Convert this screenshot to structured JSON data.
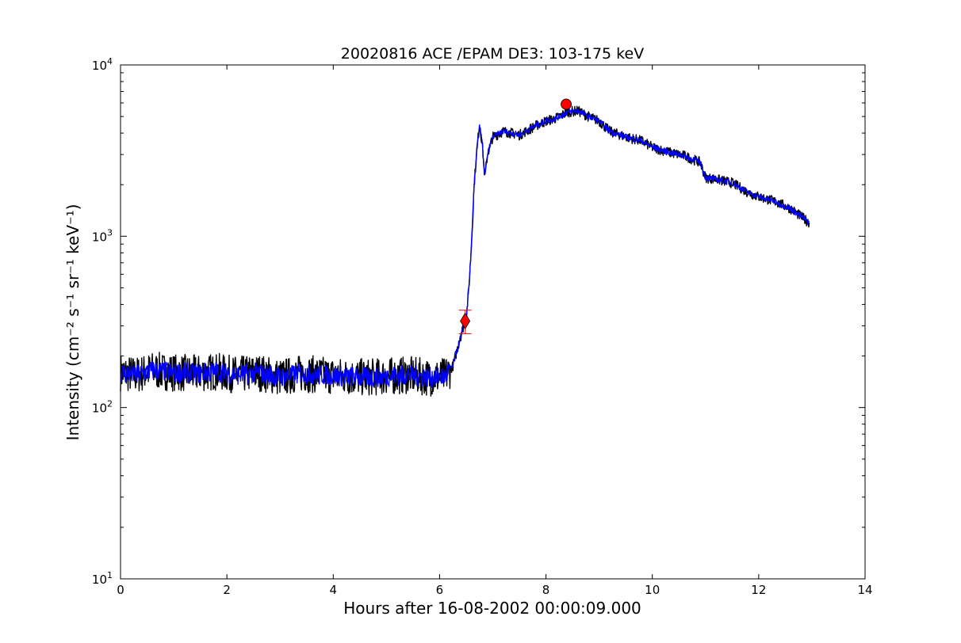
{
  "chart_data": {
    "type": "line",
    "title": "20020816 ACE /EPAM DE3: 103-175 keV",
    "xlabel": "Hours after 16-08-2002 00:00:09.000",
    "ylabel": "Intensity (cm⁻² s⁻¹ sr⁻¹ keV⁻¹)",
    "xlim": [
      0,
      14
    ],
    "ylim": [
      10,
      10000
    ],
    "yscale": "log",
    "grid": false,
    "x_ticks": [
      "0",
      "2",
      "4",
      "6",
      "8",
      "10",
      "12",
      "14"
    ],
    "y_ticks": [
      {
        "value": 10,
        "base": "10",
        "exp": "1"
      },
      {
        "value": 100,
        "base": "10",
        "exp": "2"
      },
      {
        "value": 1000,
        "base": "10",
        "exp": "3"
      },
      {
        "value": 10000,
        "base": "10",
        "exp": "4"
      }
    ],
    "series": [
      {
        "role": "raw",
        "color": "#000000",
        "x": [
          0.0,
          0.3,
          0.6,
          1.0,
          1.4,
          1.8,
          2.2,
          2.6,
          3.0,
          3.4,
          3.8,
          4.2,
          4.6,
          5.0,
          5.4,
          5.8,
          6.1,
          6.25,
          6.35,
          6.45,
          6.5,
          6.55,
          6.6,
          6.65,
          6.7,
          6.75,
          6.8,
          6.85,
          6.9,
          7.0,
          7.2,
          7.5,
          7.8,
          8.0,
          8.2,
          8.4,
          8.6,
          8.8,
          9.0,
          9.2,
          9.5,
          9.8,
          10.0,
          10.3,
          10.6,
          10.9,
          11.0,
          11.2,
          11.5,
          11.8,
          12.0,
          12.3,
          12.6,
          12.8,
          12.95
        ],
        "y": [
          160,
          155,
          165,
          160,
          158,
          162,
          155,
          160,
          150,
          158,
          155,
          152,
          150,
          152,
          155,
          150,
          152,
          175,
          230,
          300,
          330,
          500,
          900,
          2000,
          3200,
          4500,
          3500,
          2200,
          3000,
          3800,
          4100,
          3900,
          4400,
          4700,
          4900,
          5300,
          5400,
          5000,
          4700,
          4100,
          3800,
          3600,
          3300,
          3100,
          2950,
          2700,
          2200,
          2150,
          2050,
          1800,
          1700,
          1600,
          1450,
          1300,
          1200
        ]
      },
      {
        "role": "smoothed",
        "color": "#0000ff",
        "x": [
          0.0,
          0.3,
          0.6,
          1.0,
          1.4,
          1.8,
          2.2,
          2.6,
          3.0,
          3.4,
          3.8,
          4.2,
          4.6,
          5.0,
          5.4,
          5.8,
          6.1,
          6.25,
          6.35,
          6.45,
          6.5,
          6.55,
          6.6,
          6.65,
          6.7,
          6.75,
          6.8,
          6.85,
          6.9,
          7.0,
          7.2,
          7.5,
          7.8,
          8.0,
          8.2,
          8.4,
          8.6,
          8.8,
          9.0,
          9.2,
          9.5,
          9.8,
          10.0,
          10.3,
          10.6,
          10.9,
          11.0,
          11.2,
          11.5,
          11.8,
          12.0,
          12.3,
          12.6,
          12.8,
          12.95
        ],
        "y": [
          160,
          155,
          165,
          160,
          158,
          162,
          155,
          160,
          150,
          158,
          155,
          152,
          150,
          152,
          155,
          150,
          152,
          175,
          230,
          300,
          330,
          500,
          900,
          2000,
          3200,
          4500,
          3500,
          2200,
          3000,
          3800,
          4100,
          3900,
          4400,
          4700,
          4900,
          5300,
          5400,
          5000,
          4700,
          4100,
          3800,
          3600,
          3300,
          3100,
          2950,
          2700,
          2200,
          2150,
          2050,
          1800,
          1700,
          1600,
          1450,
          1300,
          1200
        ]
      }
    ],
    "markers": [
      {
        "shape": "diamond",
        "x": 6.48,
        "y": 320,
        "color": "#ff0000"
      },
      {
        "shape": "circle",
        "x": 8.38,
        "y": 5900,
        "color": "#ff0000"
      }
    ],
    "error_bar": {
      "x": 6.48,
      "y_low": 270,
      "y_high": 370,
      "color": "#ff0000"
    }
  }
}
